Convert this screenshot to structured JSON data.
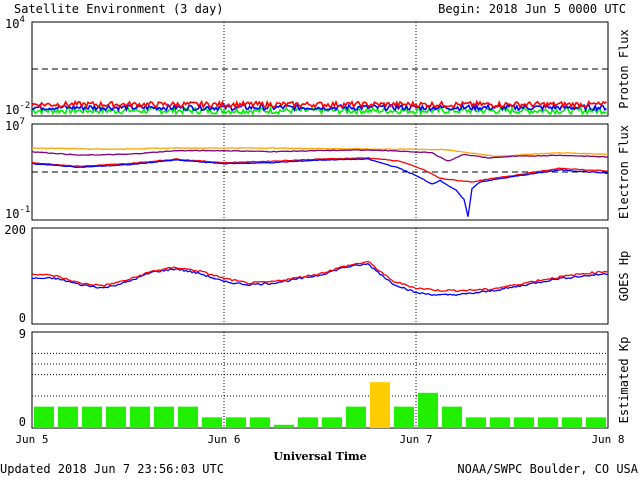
{
  "header": {
    "title": "Satellite Environment (3 day)",
    "begin": "Begin:  2018 Jun 5 0000 UTC"
  },
  "footer": {
    "updated": "Updated 2018 Jun  7 23:56:03 UTC",
    "credit": "NOAA/SWPC Boulder, CO USA",
    "xlabel": "Universal Time"
  },
  "x_ticks": [
    "Jun 5",
    "Jun 6",
    "Jun 7",
    "Jun 8"
  ],
  "colors": {
    "red": "#ff0000",
    "blue": "#0000ff",
    "green": "#00ee00",
    "orange": "#ffa500",
    "purple": "#800080",
    "kp_normal": "#22ee00",
    "kp_elevated": "#ffcc00"
  },
  "chart_data": [
    {
      "type": "line",
      "ylabel": "Proton Flux",
      "scale": "log",
      "ylim_exp": [
        -2,
        4
      ],
      "y_tick_labels": [
        {
          "base": "10",
          "exp": "4"
        },
        {
          "base": "10",
          "exp": "-2"
        }
      ],
      "threshold": 10,
      "x_range_hours": [
        0,
        72
      ],
      "series": [
        {
          "color": "red",
          "level": 0.055,
          "noise": 0.35
        },
        {
          "color": "blue",
          "level": 0.035,
          "noise": 0.35
        },
        {
          "color": "green",
          "level": 0.022,
          "noise": 0.4
        }
      ]
    },
    {
      "type": "line",
      "ylabel": "Electron Flux",
      "scale": "log",
      "ylim_exp": [
        -1,
        7
      ],
      "y_tick_labels": [
        {
          "base": "10",
          "exp": "7"
        },
        {
          "base": "10",
          "exp": "-1"
        }
      ],
      "threshold": 1000,
      "series": [
        {
          "color": "orange",
          "x": [
            0,
            10,
            18,
            28,
            36,
            44,
            48,
            52,
            56,
            58,
            62,
            66,
            72
          ],
          "y": [
            100000,
            80000,
            100000,
            100000,
            90000,
            80000,
            80000,
            70000,
            30000,
            20000,
            30000,
            40000,
            30000
          ]
        },
        {
          "color": "purple",
          "x": [
            0,
            6,
            12,
            18,
            24,
            30,
            36,
            42,
            47,
            50,
            52,
            54,
            57,
            60,
            66,
            72
          ],
          "y": [
            50000,
            25000,
            30000,
            60000,
            60000,
            50000,
            60000,
            70000,
            50000,
            40000,
            8000,
            30000,
            15000,
            20000,
            25000,
            18000
          ]
        },
        {
          "color": "red",
          "x": [
            0,
            6,
            12,
            18,
            24,
            30,
            36,
            42,
            46,
            49,
            51,
            53,
            55,
            57,
            60,
            66,
            72
          ],
          "y": [
            6000,
            3000,
            5000,
            12000,
            6000,
            8000,
            12000,
            15000,
            8000,
            1500,
            300,
            200,
            150,
            250,
            500,
            2000,
            1200
          ]
        },
        {
          "color": "blue",
          "x": [
            0,
            6,
            12,
            18,
            24,
            30,
            36,
            42,
            46,
            48,
            50,
            51,
            53,
            54,
            54.5,
            55,
            56,
            60,
            66,
            72
          ],
          "y": [
            5000,
            2500,
            4000,
            10000,
            5000,
            6000,
            10000,
            12000,
            2000,
            500,
            100,
            200,
            30,
            5,
            0.2,
            40,
            150,
            400,
            1500,
            800
          ]
        }
      ]
    },
    {
      "type": "line",
      "ylabel": "GOES Hp",
      "scale": "linear",
      "ylim": [
        0,
        200
      ],
      "y_tick_labels": [
        "200",
        "0"
      ],
      "series": [
        {
          "color": "red",
          "x": [
            0,
            3,
            6,
            9,
            12,
            15,
            18,
            21,
            24,
            27,
            30,
            33,
            36,
            39,
            42,
            45,
            48,
            51,
            54,
            57,
            60,
            63,
            66,
            69,
            72
          ],
          "y": [
            105,
            100,
            85,
            80,
            92,
            110,
            118,
            110,
            95,
            85,
            88,
            96,
            105,
            120,
            130,
            90,
            75,
            70,
            70,
            72,
            80,
            90,
            98,
            105,
            110
          ]
        },
        {
          "color": "blue",
          "x": [
            0,
            3,
            6,
            9,
            12,
            15,
            18,
            21,
            24,
            27,
            30,
            33,
            36,
            39,
            42,
            45,
            48,
            51,
            54,
            57,
            60,
            63,
            66,
            69,
            72
          ],
          "y": [
            95,
            95,
            82,
            75,
            88,
            108,
            115,
            105,
            88,
            82,
            85,
            93,
            102,
            118,
            125,
            85,
            65,
            60,
            62,
            68,
            76,
            86,
            95,
            100,
            105
          ]
        }
      ]
    },
    {
      "type": "bar",
      "ylabel": "Estimated Kp",
      "ylim": [
        0,
        9
      ],
      "y_tick_labels": [
        "9",
        "0"
      ],
      "storm_threshold": 5,
      "values": [
        2,
        2,
        2,
        2,
        2,
        2,
        2,
        1,
        1,
        1,
        0.3,
        1,
        1,
        2,
        4.3,
        2,
        3.3,
        2,
        1,
        1,
        1,
        1,
        1,
        1
      ]
    }
  ]
}
